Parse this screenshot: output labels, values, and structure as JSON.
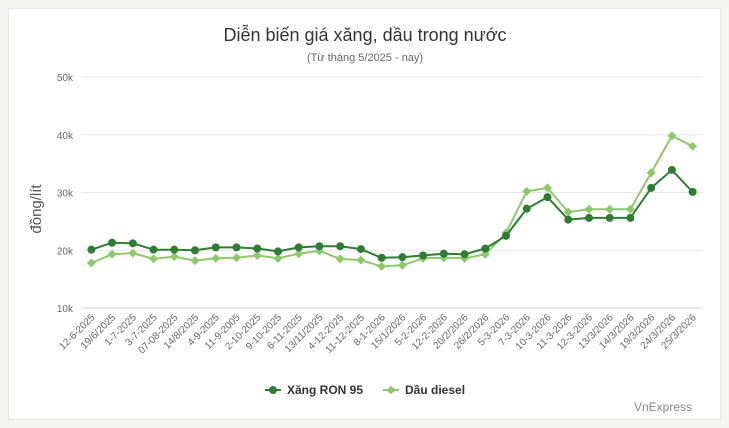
{
  "chart_data": {
    "type": "line",
    "title": "Diễn biến giá xăng, dầu trong nước",
    "subtitle": "(Từ tháng 5/2025 - nay)",
    "ylabel": "đồng/lít",
    "xlabel": "",
    "ylim": [
      10000,
      50000
    ],
    "yticks": [
      10000,
      20000,
      30000,
      40000,
      50000
    ],
    "ytick_labels": [
      "10k",
      "20k",
      "30k",
      "40k",
      "50k"
    ],
    "grid": true,
    "legend": "bottom-center",
    "credit": "VnExpress",
    "x": [
      "12-6-2025",
      "19/6/2025",
      "1-7-2025",
      "3-7-2025",
      "07-08-2025",
      "14/8/2025",
      "4-9-2025",
      "11-9-2005",
      "2-10-2025",
      "9-10-2025",
      "6-11-2025",
      "13/11/2025",
      "4-12-2025",
      "11-12-2025",
      "8-1-2026",
      "15/1/2026",
      "5-2-2026",
      "12-2-2026",
      "20/2/2026",
      "26/2/2026",
      "5-3-2026",
      "7-3-2026",
      "10-3-2026",
      "11-3-2026",
      "12-3-2026",
      "13/3/2026",
      "14/3/2026",
      "19/3/2026",
      "24/3/2026",
      "25/3/2026"
    ],
    "series": [
      {
        "name": "Xăng RON 95",
        "color": "#2e7d32",
        "values": [
          20100,
          21300,
          21200,
          20100,
          20100,
          20000,
          20500,
          20500,
          20300,
          19800,
          20500,
          20700,
          20700,
          20200,
          18700,
          18800,
          19100,
          19400,
          19300,
          20300,
          22500,
          27200,
          29200,
          25300,
          25600,
          25600,
          25600,
          30800,
          33900,
          30100
        ]
      },
      {
        "name": "Dầu diesel",
        "color": "#8dc96b",
        "values": [
          17800,
          19300,
          19500,
          18500,
          18900,
          18200,
          18600,
          18700,
          19100,
          18600,
          19400,
          19900,
          18500,
          18300,
          17200,
          17400,
          18600,
          18700,
          18600,
          19300,
          23000,
          30200,
          30800,
          26600,
          27100,
          27100,
          27100,
          33400,
          39800,
          38000
        ]
      }
    ]
  }
}
